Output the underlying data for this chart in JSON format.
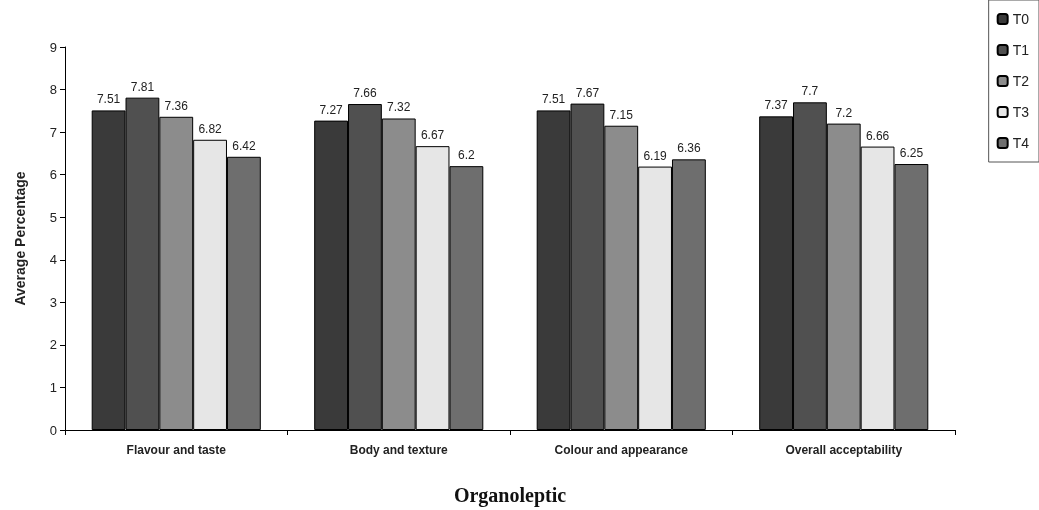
{
  "chart_data": {
    "type": "bar",
    "xlabel": "Organoleptic",
    "ylabel": "Average Percentage",
    "categories": [
      "Flavour and taste",
      "Body and texture",
      "Colour and appearance",
      "Overall acceptability"
    ],
    "series": [
      {
        "name": "T0",
        "color": "#3a3a3a",
        "values": [
          7.51,
          7.27,
          7.51,
          7.37
        ]
      },
      {
        "name": "T1",
        "color": "#505050",
        "values": [
          7.81,
          7.66,
          7.67,
          7.7
        ]
      },
      {
        "name": "T2",
        "color": "#8c8c8c",
        "values": [
          7.36,
          7.32,
          7.15,
          7.2
        ]
      },
      {
        "name": "T3",
        "color": "#e6e6e6",
        "values": [
          6.82,
          6.67,
          6.19,
          6.66
        ]
      },
      {
        "name": "T4",
        "color": "#6e6e6e",
        "values": [
          6.42,
          6.2,
          6.36,
          6.25
        ]
      }
    ],
    "ylim": [
      0,
      9
    ],
    "yticks": [
      0,
      1,
      2,
      3,
      4,
      5,
      6,
      7,
      8,
      9
    ],
    "grid": false,
    "legend": "top right",
    "data_labels": true
  }
}
